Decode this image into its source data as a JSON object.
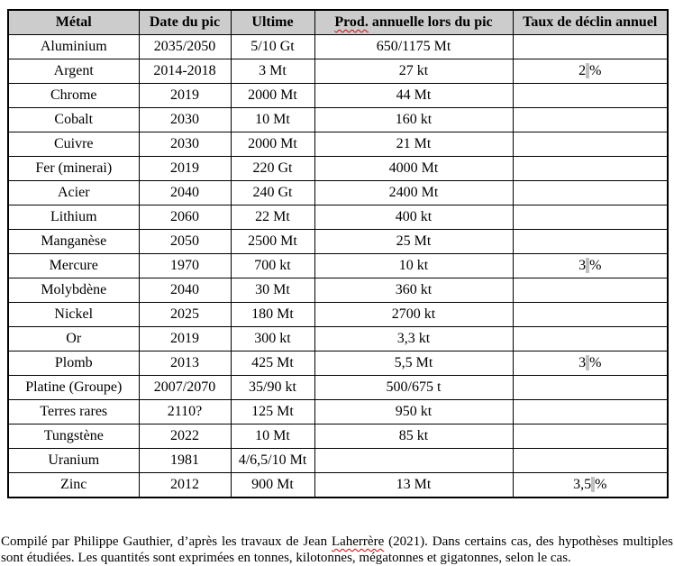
{
  "header": {
    "metal": "Métal",
    "date": "Date du pic",
    "ultime": "Ultime",
    "prod_misspelled": "Prod.",
    "prod_rest": " annuelle lors du pic",
    "taux": "Taux de déclin annuel"
  },
  "columns": [
    "Métal",
    "Date du pic",
    "Ultime",
    "Prod. annuelle lors du pic",
    "Taux de déclin annuel"
  ],
  "rows": [
    {
      "metal": "Aluminium",
      "date": "2035/2050",
      "ultime": "5/10 Gt",
      "prod": "650/1175 Mt",
      "taux": ""
    },
    {
      "metal": "Argent",
      "date": "2014-2018",
      "ultime": "3 Mt",
      "prod": "27 kt",
      "taux": "2 %"
    },
    {
      "metal": "Chrome",
      "date": "2019",
      "ultime": "2000 Mt",
      "prod": "44 Mt",
      "taux": ""
    },
    {
      "metal": "Cobalt",
      "date": "2030",
      "ultime": "10 Mt",
      "prod": "160 kt",
      "taux": ""
    },
    {
      "metal": "Cuivre",
      "date": "2030",
      "ultime": "2000 Mt",
      "prod": "21 Mt",
      "taux": ""
    },
    {
      "metal": "Fer (minerai)",
      "date": "2019",
      "ultime": "220 Gt",
      "prod": "4000 Mt",
      "taux": ""
    },
    {
      "metal": "Acier",
      "date": "2040",
      "ultime": "240 Gt",
      "prod": "2400 Mt",
      "taux": ""
    },
    {
      "metal": "Lithium",
      "date": "2060",
      "ultime": "22 Mt",
      "prod": "400 kt",
      "taux": ""
    },
    {
      "metal": "Manganèse",
      "date": "2050",
      "ultime": "2500 Mt",
      "prod": "25 Mt",
      "taux": ""
    },
    {
      "metal": "Mercure",
      "date": "1970",
      "ultime": "700 kt",
      "prod": "10 kt",
      "taux": "3 %"
    },
    {
      "metal": "Molybdène",
      "date": "2040",
      "ultime": "30 Mt",
      "prod": "360 kt",
      "taux": ""
    },
    {
      "metal": "Nickel",
      "date": "2025",
      "ultime": "180 Mt",
      "prod": "2700 kt",
      "taux": ""
    },
    {
      "metal": "Or",
      "date": "2019",
      "ultime": "300 kt",
      "prod": "3,3 kt",
      "taux": ""
    },
    {
      "metal": "Plomb",
      "date": "2013",
      "ultime": "425 Mt",
      "prod": "5,5 Mt",
      "taux": "3 %"
    },
    {
      "metal": "Platine (Groupe)",
      "date": "2007/2070",
      "ultime": "35/90 kt",
      "prod": "500/675 t",
      "taux": ""
    },
    {
      "metal": "Terres rares",
      "date": "2110?",
      "ultime": "125 Mt",
      "prod": "950 kt",
      "taux": ""
    },
    {
      "metal": "Tungstène",
      "date": "2022",
      "ultime": "10 Mt",
      "prod": "85 kt",
      "taux": ""
    },
    {
      "metal": "Uranium",
      "date": "1981",
      "ultime": "4/6,5/10 Mt",
      "prod": "",
      "taux": ""
    },
    {
      "metal": "Zinc",
      "date": "2012",
      "ultime": "900 Mt",
      "prod": "13 Mt",
      "taux": "3,5 %"
    }
  ],
  "footer": {
    "part1": "Compilé par Philippe Gauthier, d’après les travaux de Jean ",
    "misspelled": "Laherrère",
    "part2": " (2021). Dans certains cas, des hypothèses multiples sont étudiées. Les quantités sont exprimées en tonnes, kilotonnes, mégatonnes et gigatonnes, selon le cas."
  },
  "colors": {
    "header_bg": "#cccccc",
    "border": "#000000",
    "nbsp_highlight": "#c0c0c0",
    "spellcheck": "#e00000"
  }
}
